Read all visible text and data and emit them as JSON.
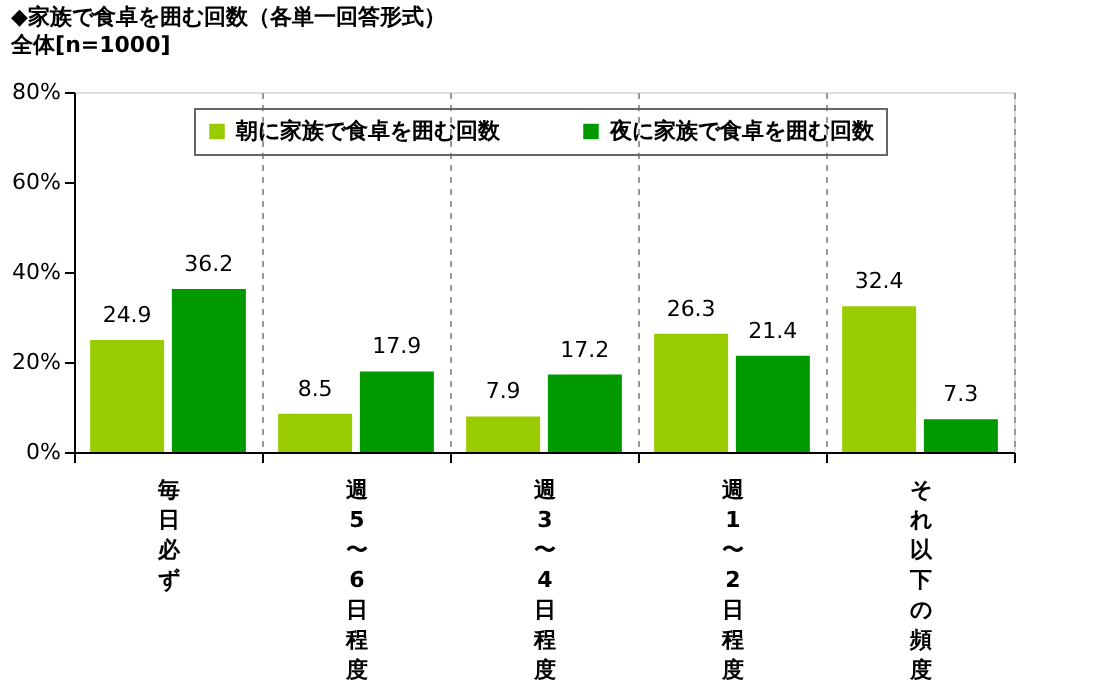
{
  "chart_data": {
    "type": "bar",
    "title": "◆家族で食卓を囲む回数（各単一回答形式）",
    "subtitle": "全体[n=1000]",
    "categories": [
      "毎日必ず",
      "週5〜6日程度",
      "週3〜4日程度",
      "週1〜2日程度",
      "それ以下の頻度"
    ],
    "series": [
      {
        "name": "朝に家族で食卓を囲む回数",
        "color": "#99cc00",
        "values": [
          24.9,
          8.5,
          7.9,
          26.3,
          32.4
        ]
      },
      {
        "name": "夜に家族で食卓を囲む回数",
        "color": "#009900",
        "values": [
          36.2,
          17.9,
          17.2,
          21.4,
          7.3
        ]
      }
    ],
    "ylim": [
      0,
      80
    ],
    "yticks": [
      {
        "value": 0,
        "label": "0%"
      },
      {
        "value": 20,
        "label": "20%"
      },
      {
        "value": 40,
        "label": "40%"
      },
      {
        "value": 60,
        "label": "60%"
      },
      {
        "value": 80,
        "label": "80%"
      }
    ],
    "data_labels": true,
    "grid": "x",
    "legend": "top"
  }
}
